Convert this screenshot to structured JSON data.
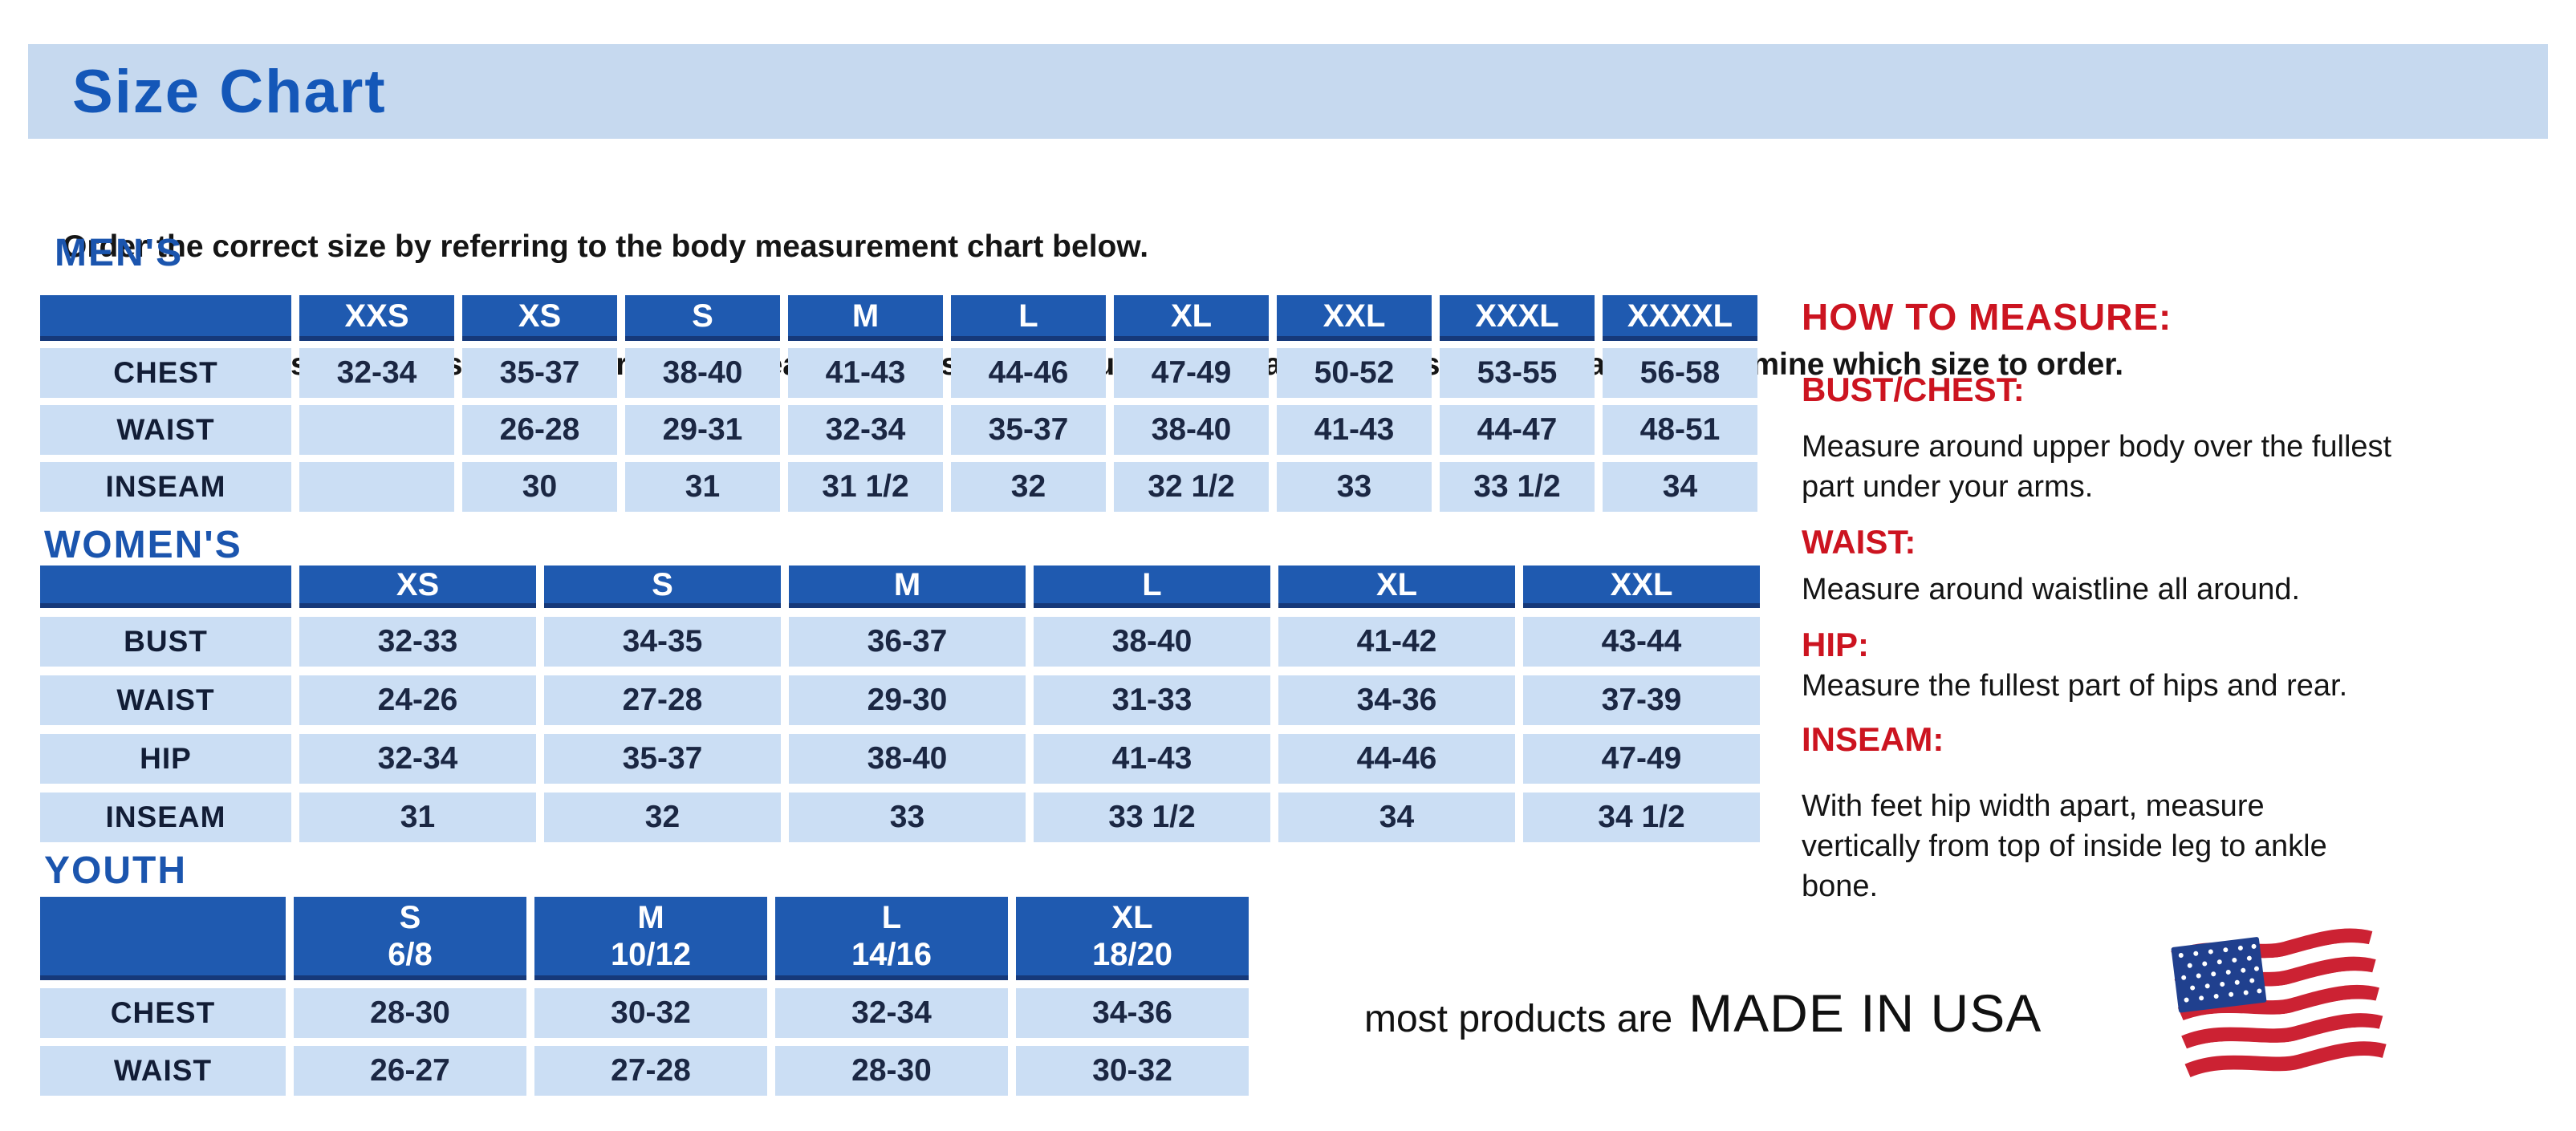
{
  "banner": {
    "title": "Size Chart"
  },
  "intro": {
    "line1": "Order the correct size by referring to the body measurement chart below.",
    "line2": "Measurements shown on size chart are body measurements.  Find your body measurements on the chart to determine which size to order."
  },
  "tables": {
    "mens": {
      "heading": "MEN'S",
      "columns": [
        "XXS",
        "XS",
        "S",
        "M",
        "L",
        "XL",
        "XXL",
        "XXXL",
        "XXXXL"
      ],
      "rows": [
        {
          "label": "CHEST",
          "values": [
            "32-34",
            "35-37",
            "38-40",
            "41-43",
            "44-46",
            "47-49",
            "50-52",
            "53-55",
            "56-58"
          ]
        },
        {
          "label": "WAIST",
          "values": [
            "",
            "26-28",
            "29-31",
            "32-34",
            "35-37",
            "38-40",
            "41-43",
            "44-47",
            "48-51"
          ]
        },
        {
          "label": "INSEAM",
          "values": [
            "",
            "30",
            "31",
            "31 1/2",
            "32",
            "32 1/2",
            "33",
            "33 1/2",
            "34"
          ]
        }
      ]
    },
    "womens": {
      "heading": "WOMEN'S",
      "columns": [
        "XS",
        "S",
        "M",
        "L",
        "XL",
        "XXL"
      ],
      "rows": [
        {
          "label": "BUST",
          "values": [
            "32-33",
            "34-35",
            "36-37",
            "38-40",
            "41-42",
            "43-44"
          ]
        },
        {
          "label": "WAIST",
          "values": [
            "24-26",
            "27-28",
            "29-30",
            "31-33",
            "34-36",
            "37-39"
          ]
        },
        {
          "label": "HIP",
          "values": [
            "32-34",
            "35-37",
            "38-40",
            "41-43",
            "44-46",
            "47-49"
          ]
        },
        {
          "label": "INSEAM",
          "values": [
            "31",
            "32",
            "33",
            "33 1/2",
            "34",
            "34 1/2"
          ]
        }
      ]
    },
    "youth": {
      "heading": "YOUTH",
      "columns": [
        "S\n6/8",
        "M\n10/12",
        "L\n14/16",
        "XL\n18/20"
      ],
      "rows": [
        {
          "label": "CHEST",
          "values": [
            "28-30",
            "30-32",
            "32-34",
            "34-36"
          ]
        },
        {
          "label": "WAIST",
          "values": [
            "26-27",
            "27-28",
            "28-30",
            "30-32"
          ]
        }
      ]
    }
  },
  "how_to_measure": {
    "title": "HOW TO MEASURE:",
    "items": [
      {
        "label": "BUST/CHEST:",
        "text": "Measure around upper body over the fullest part under your arms."
      },
      {
        "label": "WAIST:",
        "text": "Measure around waistline all around."
      },
      {
        "label": "HIP:",
        "text": "Measure the fullest part of hips and rear."
      },
      {
        "label": "INSEAM:",
        "text": "With feet hip width apart, measure vertically from top of inside leg to ankle bone."
      }
    ]
  },
  "made_in": {
    "prefix": "most products are",
    "main": "MADE IN USA",
    "icon": "us-flag-icon"
  },
  "colors": {
    "banner_bg": "#c6d9ef",
    "title_blue": "#1457b8",
    "heading_blue": "#1b55ae",
    "table_header_bg": "#1f5ab0",
    "table_header_border": "#16397a",
    "cell_bg": "#cbdef4",
    "cell_text": "#1b2743",
    "accent_red": "#cc1420",
    "flag_red": "#cc2233",
    "flag_blue": "#20408e"
  }
}
